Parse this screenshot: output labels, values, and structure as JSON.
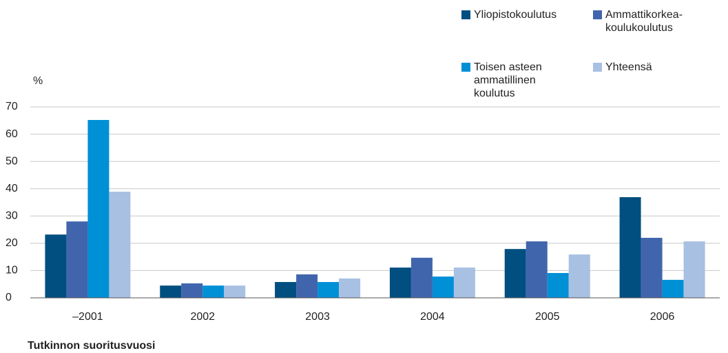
{
  "chart_data": {
    "type": "bar",
    "y_label": "%",
    "x_label": "Tutkinnon suoritusvuosi",
    "categories": [
      "–2001",
      "2002",
      "2003",
      "2004",
      "2005",
      "2006"
    ],
    "series": [
      {
        "name": "Yliopistokoulutus",
        "color": "#004f80",
        "values": [
          23.2,
          4.5,
          5.8,
          11.1,
          17.9,
          36.9
        ]
      },
      {
        "name": "Ammattikorkea-koulukoulutus",
        "color": "#4165ad",
        "values": [
          28.0,
          5.3,
          8.6,
          14.7,
          20.7,
          22.0
        ]
      },
      {
        "name": "Toisen asteen ammatillinen koulutus",
        "color": "#0090d6",
        "values": [
          65.2,
          4.5,
          5.8,
          7.8,
          9.1,
          6.6
        ]
      },
      {
        "name": "Yhteensä",
        "color": "#a8c0e2",
        "values": [
          38.9,
          4.5,
          7.1,
          11.1,
          15.9,
          20.7
        ]
      }
    ],
    "ylim": [
      0,
      70
    ],
    "yticks": [
      0,
      10,
      20,
      30,
      40,
      50,
      60,
      70
    ],
    "grid": true
  }
}
